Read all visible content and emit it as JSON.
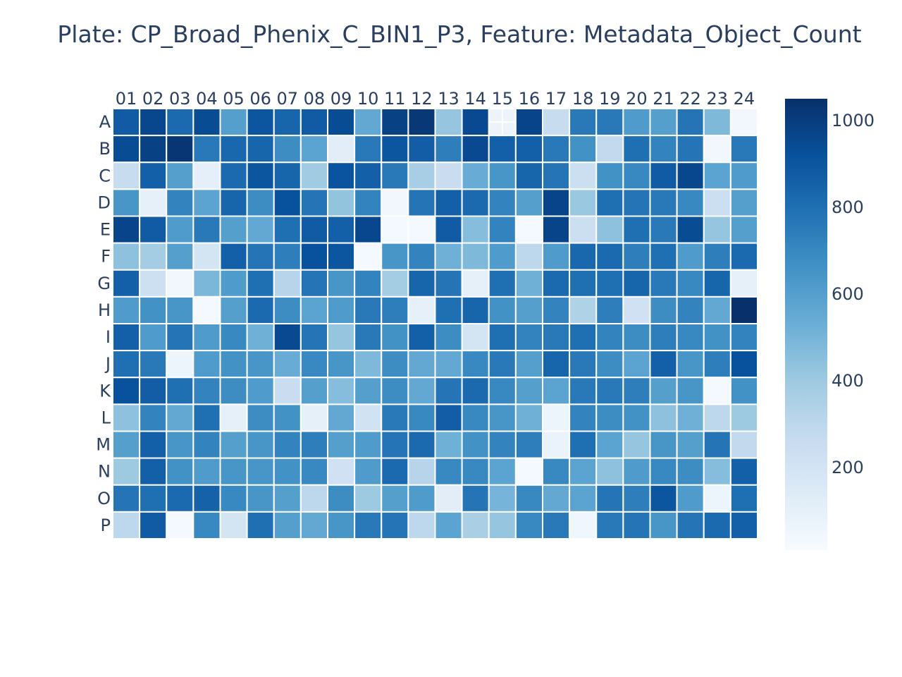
{
  "chart_data": {
    "type": "heatmap",
    "title": "Plate: CP_Broad_Phenix_C_BIN1_P3, Feature: Metadata_Object_Count",
    "columns": [
      "01",
      "02",
      "03",
      "04",
      "05",
      "06",
      "07",
      "08",
      "09",
      "10",
      "11",
      "12",
      "13",
      "14",
      "15",
      "16",
      "17",
      "18",
      "19",
      "20",
      "21",
      "22",
      "23",
      "24"
    ],
    "rows": [
      "A",
      "B",
      "C",
      "D",
      "E",
      "F",
      "G",
      "H",
      "I",
      "J",
      "K",
      "L",
      "M",
      "N",
      "O",
      "P"
    ],
    "colorscale": [
      "#f7fbff",
      "#deebf7",
      "#c6dbef",
      "#9ecae1",
      "#6baed6",
      "#4292c6",
      "#2171b5",
      "#08519c",
      "#08306b"
    ],
    "zmin": 10,
    "zmax": 1050,
    "colorbar_ticks": [
      200,
      400,
      600,
      800,
      1000
    ],
    "missing_wells": [
      [
        0,
        14
      ]
    ],
    "z": [
      [
        880,
        960,
        820,
        940,
        600,
        900,
        840,
        880,
        940,
        560,
        980,
        1020,
        420,
        950,
        null,
        970,
        260,
        760,
        760,
        620,
        600,
        780,
        480,
        40
      ],
      [
        940,
        980,
        1030,
        760,
        830,
        840,
        680,
        580,
        120,
        760,
        900,
        870,
        740,
        950,
        860,
        860,
        760,
        660,
        280,
        800,
        720,
        780,
        40,
        760
      ],
      [
        260,
        860,
        600,
        110,
        820,
        900,
        840,
        390,
        910,
        860,
        760,
        370,
        250,
        540,
        640,
        840,
        780,
        240,
        660,
        700,
        880,
        960,
        580,
        620
      ],
      [
        640,
        100,
        720,
        580,
        840,
        680,
        920,
        780,
        430,
        720,
        40,
        780,
        860,
        820,
        720,
        600,
        970,
        410,
        800,
        780,
        760,
        700,
        240,
        600
      ],
      [
        970,
        880,
        620,
        760,
        600,
        560,
        800,
        880,
        860,
        960,
        30,
        30,
        880,
        460,
        720,
        30,
        970,
        240,
        440,
        800,
        760,
        940,
        420,
        600
      ],
      [
        440,
        380,
        600,
        200,
        860,
        780,
        740,
        920,
        900,
        30,
        640,
        720,
        520,
        480,
        620,
        300,
        620,
        830,
        820,
        740,
        800,
        620,
        740,
        820
      ],
      [
        860,
        230,
        40,
        490,
        620,
        800,
        320,
        780,
        640,
        720,
        380,
        840,
        780,
        100,
        800,
        520,
        820,
        800,
        800,
        840,
        760,
        700,
        840,
        100
      ],
      [
        620,
        660,
        640,
        30,
        600,
        820,
        680,
        580,
        620,
        760,
        740,
        100,
        800,
        840,
        660,
        600,
        720,
        340,
        740,
        220,
        680,
        720,
        560,
        1050
      ],
      [
        860,
        620,
        780,
        620,
        700,
        520,
        950,
        780,
        420,
        760,
        660,
        860,
        680,
        200,
        800,
        720,
        760,
        800,
        720,
        680,
        740,
        700,
        660,
        720
      ],
      [
        800,
        760,
        60,
        620,
        660,
        640,
        540,
        700,
        640,
        480,
        680,
        560,
        560,
        700,
        760,
        600,
        840,
        760,
        680,
        580,
        860,
        640,
        740,
        920
      ],
      [
        920,
        870,
        800,
        720,
        680,
        620,
        250,
        600,
        460,
        600,
        680,
        560,
        780,
        820,
        700,
        600,
        580,
        760,
        760,
        740,
        600,
        640,
        30,
        660
      ],
      [
        440,
        720,
        560,
        800,
        100,
        680,
        660,
        100,
        560,
        210,
        760,
        700,
        870,
        700,
        640,
        520,
        60,
        720,
        680,
        660,
        440,
        520,
        300,
        400
      ],
      [
        600,
        860,
        640,
        720,
        600,
        640,
        720,
        740,
        600,
        620,
        780,
        820,
        520,
        660,
        720,
        740,
        80,
        800,
        580,
        420,
        640,
        600,
        780,
        280
      ],
      [
        400,
        860,
        660,
        620,
        640,
        640,
        660,
        700,
        220,
        620,
        820,
        320,
        700,
        700,
        580,
        30,
        700,
        580,
        440,
        620,
        700,
        680,
        460,
        860
      ],
      [
        780,
        800,
        820,
        850,
        700,
        640,
        600,
        300,
        680,
        400,
        600,
        620,
        120,
        780,
        500,
        700,
        560,
        580,
        780,
        740,
        900,
        620,
        60,
        800
      ],
      [
        300,
        880,
        30,
        700,
        200,
        800,
        600,
        560,
        640,
        760,
        780,
        300,
        580,
        360,
        420,
        700,
        760,
        50,
        760,
        780,
        640,
        780,
        820,
        860
      ]
    ]
  }
}
